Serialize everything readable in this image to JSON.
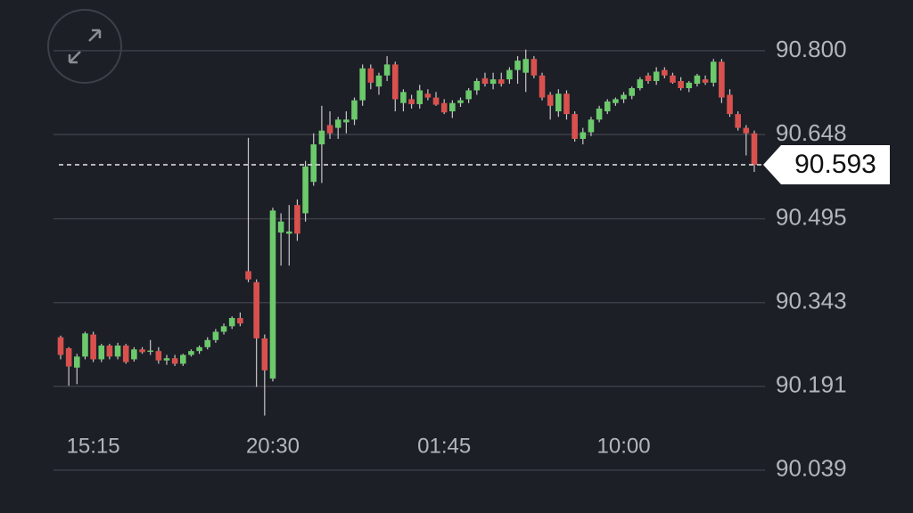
{
  "chart_data": {
    "type": "candlestick",
    "categories": [
      null,
      null,
      null,
      null,
      "15:15",
      null,
      null,
      null,
      null,
      null,
      null,
      null,
      null,
      null,
      null,
      null,
      null,
      null,
      null,
      null,
      null,
      null,
      null,
      null,
      null,
      null,
      "20:30",
      null,
      null,
      null,
      null,
      null,
      null,
      null,
      null,
      null,
      null,
      null,
      null,
      null,
      null,
      null,
      null,
      null,
      null,
      null,
      null,
      "01:45",
      null,
      null,
      null,
      null,
      null,
      null,
      null,
      null,
      null,
      null,
      null,
      null,
      null,
      null,
      null,
      null,
      null,
      null,
      null,
      null,
      null,
      "10:00",
      null,
      null,
      null,
      null,
      null,
      null,
      null,
      null,
      null,
      null,
      null,
      null,
      null,
      null,
      null,
      null
    ],
    "open": [
      90.28,
      90.26,
      90.225,
      90.245,
      90.285,
      90.24,
      90.265,
      90.245,
      90.265,
      90.24,
      90.258,
      90.255,
      90.255,
      90.238,
      90.242,
      90.232,
      90.248,
      90.255,
      90.262,
      90.275,
      90.29,
      90.3,
      90.315,
      90.4,
      90.38,
      90.278,
      90.205,
      90.47,
      90.468,
      90.52,
      90.505,
      90.562,
      90.63,
      90.665,
      90.66,
      90.67,
      90.675,
      90.71,
      90.768,
      90.735,
      90.755,
      90.775,
      90.705,
      90.712,
      90.703,
      90.722,
      90.715,
      90.705,
      90.69,
      90.705,
      90.712,
      90.728,
      90.75,
      90.74,
      90.748,
      90.748,
      90.765,
      90.76,
      90.785,
      90.755,
      90.72,
      90.69,
      90.722,
      90.685,
      90.64,
      90.652,
      90.675,
      90.69,
      90.705,
      90.712,
      90.718,
      90.732,
      90.755,
      90.745,
      90.765,
      90.755,
      90.745,
      90.732,
      90.74,
      90.748,
      90.742,
      90.78,
      90.72,
      90.685,
      90.66,
      90.65
    ],
    "high": [
      90.283,
      90.262,
      90.25,
      90.29,
      90.29,
      90.268,
      90.268,
      90.27,
      90.268,
      90.262,
      90.262,
      90.275,
      90.262,
      90.248,
      90.248,
      90.25,
      90.258,
      90.265,
      90.28,
      90.295,
      90.305,
      90.318,
      90.325,
      90.642,
      90.385,
      90.285,
      90.515,
      90.505,
      90.52,
      90.53,
      90.6,
      90.65,
      90.7,
      90.69,
      90.68,
      90.69,
      90.715,
      90.775,
      90.775,
      90.76,
      90.79,
      90.78,
      90.73,
      90.72,
      90.738,
      90.73,
      90.725,
      90.712,
      90.71,
      90.715,
      90.732,
      90.75,
      90.76,
      90.76,
      90.76,
      90.77,
      90.79,
      90.802,
      90.79,
      90.76,
      90.725,
      90.73,
      90.728,
      90.69,
      90.66,
      90.68,
      90.7,
      90.712,
      90.715,
      90.725,
      90.735,
      90.752,
      90.76,
      90.77,
      90.77,
      90.76,
      90.752,
      90.745,
      90.758,
      90.755,
      90.785,
      90.785,
      90.73,
      90.69,
      90.665,
      90.655
    ],
    "low": [
      90.24,
      90.192,
      90.195,
      90.24,
      90.235,
      90.235,
      90.24,
      90.24,
      90.232,
      90.236,
      90.25,
      90.248,
      90.232,
      90.23,
      90.228,
      90.228,
      90.245,
      90.25,
      90.258,
      90.27,
      90.285,
      90.295,
      90.3,
      90.38,
      90.19,
      90.138,
      90.2,
      90.41,
      90.41,
      90.455,
      90.49,
      90.555,
      90.56,
      90.64,
      90.64,
      90.65,
      90.665,
      90.7,
      90.73,
      90.72,
      90.745,
      90.69,
      90.69,
      90.695,
      90.695,
      90.71,
      90.7,
      90.685,
      90.678,
      90.698,
      90.705,
      90.72,
      90.735,
      90.73,
      90.735,
      90.74,
      90.74,
      90.725,
      90.75,
      90.71,
      90.675,
      90.68,
      90.675,
      90.635,
      90.63,
      90.645,
      90.67,
      90.685,
      90.7,
      90.705,
      90.712,
      90.728,
      90.74,
      90.738,
      90.75,
      90.74,
      90.728,
      90.725,
      90.735,
      90.738,
      90.735,
      90.705,
      90.68,
      90.655,
      90.61,
      90.58
    ],
    "close": [
      90.248,
      90.227,
      90.245,
      90.287,
      90.24,
      90.265,
      90.245,
      90.265,
      90.235,
      90.258,
      90.253,
      90.256,
      90.238,
      90.242,
      90.232,
      90.248,
      90.255,
      90.262,
      90.275,
      90.29,
      90.3,
      90.315,
      90.305,
      90.385,
      90.278,
      90.22,
      90.51,
      90.49,
      90.472,
      90.468,
      90.59,
      90.63,
      90.655,
      90.65,
      90.675,
      90.675,
      90.71,
      90.768,
      90.742,
      90.755,
      90.775,
      90.712,
      90.725,
      90.703,
      90.728,
      90.715,
      90.702,
      90.688,
      90.705,
      90.71,
      90.728,
      90.745,
      90.74,
      90.748,
      90.74,
      90.765,
      90.782,
      90.785,
      90.755,
      90.715,
      90.7,
      90.722,
      90.685,
      90.64,
      90.652,
      90.675,
      90.695,
      90.708,
      90.712,
      90.72,
      90.732,
      90.748,
      90.745,
      90.762,
      90.755,
      90.742,
      90.732,
      90.742,
      90.755,
      90.742,
      90.78,
      90.715,
      90.685,
      90.66,
      90.65,
      90.593
    ],
    "up_color": "#6cc96c",
    "down_color": "#d9514e",
    "wick_color": "#c9c9c9",
    "ylim": [
      89.987,
      90.892
    ],
    "yticks": [
      {
        "value": 90.8,
        "label": "90.800"
      },
      {
        "value": 90.648,
        "label": "90.648"
      },
      {
        "value": 90.495,
        "label": "90.495"
      },
      {
        "value": 90.343,
        "label": "90.343"
      },
      {
        "value": 90.191,
        "label": "90.191"
      },
      {
        "value": 90.039,
        "label": "90.039"
      }
    ],
    "grid": true,
    "last_price": 90.593
  }
}
